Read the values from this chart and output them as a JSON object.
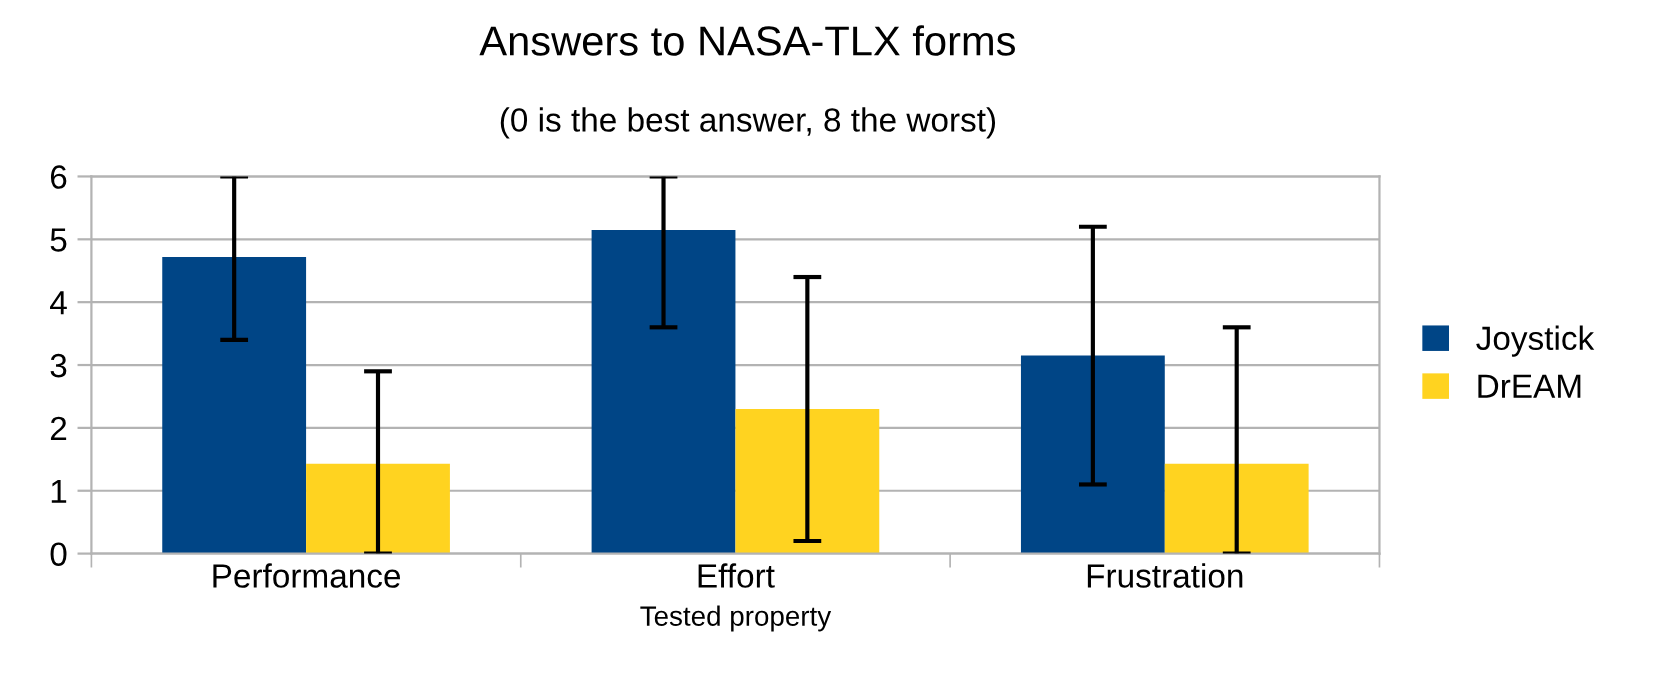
{
  "chart_data": {
    "type": "bar",
    "title": "Answers to NASA-TLX forms",
    "subtitle": "(0 is the best answer, 8 the worst)",
    "xlabel": "Tested property",
    "categories": [
      "Performance",
      "Effort",
      "Frustration"
    ],
    "series": [
      {
        "name": "Joystick",
        "color": "#004586",
        "values": [
          4.72,
          5.15,
          3.15
        ],
        "errors": [
          [
            3.4,
            6
          ],
          [
            3.6,
            6
          ],
          [
            1.1,
            5.2
          ]
        ]
      },
      {
        "name": "DrEAM",
        "color": "#ffd320",
        "values": [
          1.43,
          2.3,
          1.43
        ],
        "errors": [
          [
            0,
            2.9
          ],
          [
            0.2,
            4.4
          ],
          [
            0,
            3.6
          ]
        ]
      }
    ],
    "ylim": [
      0,
      6
    ],
    "yticks": [
      0,
      1,
      2,
      3,
      4,
      5,
      6
    ],
    "grid": "y",
    "legend": "right"
  }
}
